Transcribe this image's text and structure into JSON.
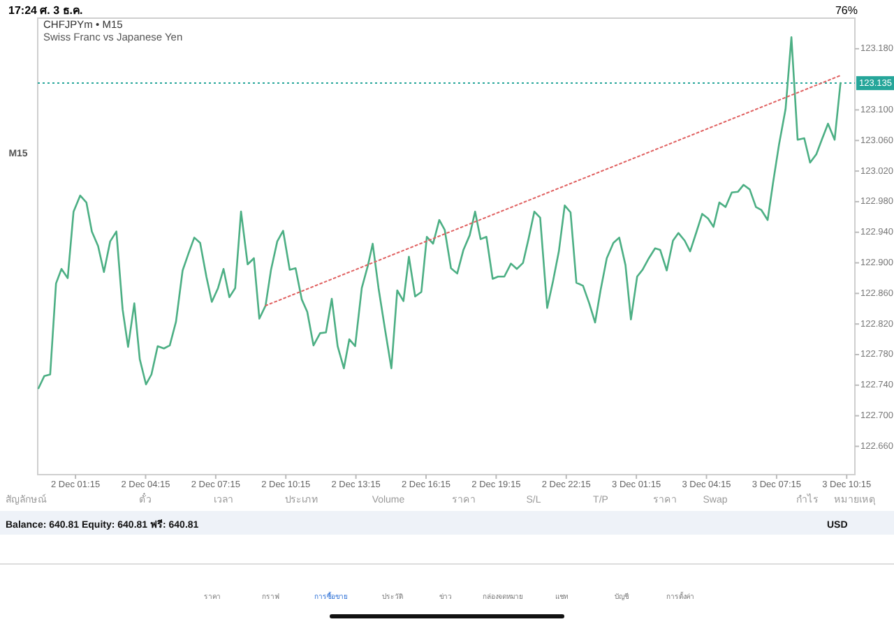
{
  "chart_data": {
    "type": "line",
    "title": "CHFJPYm • M15",
    "subtitle": "Swiss Franc vs Japanese Yen",
    "xlim": [
      "--12-01T23:38",
      "--12-03T10:36"
    ],
    "ylim": [
      122.623,
      123.22
    ],
    "xticks": [
      {
        "value": "--12-02T01:15",
        "label": "2 Dec 01:15"
      },
      {
        "value": "--12-02T04:15",
        "label": "2 Dec 04:15"
      },
      {
        "value": "--12-02T07:15",
        "label": "2 Dec 07:15"
      },
      {
        "value": "--12-02T10:15",
        "label": "2 Dec 10:15"
      },
      {
        "value": "--12-02T13:15",
        "label": "2 Dec 13:15"
      },
      {
        "value": "--12-02T16:15",
        "label": "2 Dec 16:15"
      },
      {
        "value": "--12-02T19:15",
        "label": "2 Dec 19:15"
      },
      {
        "value": "--12-02T22:15",
        "label": "2 Dec 22:15"
      },
      {
        "value": "--12-03T01:15",
        "label": "3 Dec 01:15"
      },
      {
        "value": "--12-03T04:15",
        "label": "3 Dec 04:15"
      },
      {
        "value": "--12-03T07:15",
        "label": "3 Dec 07:15"
      },
      {
        "value": "--12-03T10:15",
        "label": "3 Dec 10:15"
      }
    ],
    "yticks": [
      {
        "value": 122.66,
        "label": "122.660"
      },
      {
        "value": 122.7,
        "label": "122.700"
      },
      {
        "value": 122.74,
        "label": "122.740"
      },
      {
        "value": 122.78,
        "label": "122.780"
      },
      {
        "value": 122.82,
        "label": "122.820"
      },
      {
        "value": 122.86,
        "label": "122.860"
      },
      {
        "value": 122.9,
        "label": "122.900"
      },
      {
        "value": 122.94,
        "label": "122.940"
      },
      {
        "value": 122.98,
        "label": "122.980"
      },
      {
        "value": 123.02,
        "label": "123.020"
      },
      {
        "value": 123.06,
        "label": "123.060"
      },
      {
        "value": 123.1,
        "label": "123.100"
      },
      {
        "value": 123.18,
        "label": "123.180"
      }
    ],
    "series": [
      {
        "color": "#4caf84",
        "x": [
          "--12-01T23:40",
          "--12-01T23:55",
          "--12-02T00:10",
          "--12-02T00:25",
          "--12-02T00:39",
          "--12-02T00:55",
          "--12-02T01:10",
          "--12-02T01:27",
          "--12-02T01:43",
          "--12-02T01:57",
          "--12-02T02:13",
          "--12-02T02:28",
          "--12-02T02:44",
          "--12-02T03:00",
          "--12-02T03:16",
          "--12-02T03:30",
          "--12-02T03:46",
          "--12-02T04:00",
          "--12-02T04:16",
          "--12-02T04:30",
          "--12-02T04:46",
          "--12-02T05:02",
          "--12-02T05:17",
          "--12-02T05:33",
          "--12-02T05:50",
          "--12-02T06:05",
          "--12-02T06:20",
          "--12-02T06:35",
          "--12-02T06:51",
          "--12-02T07:05",
          "--12-02T07:21",
          "--12-02T07:35",
          "--12-02T07:50",
          "--12-02T08:05",
          "--12-02T08:20",
          "--12-02T08:37",
          "--12-02T08:53",
          "--12-02T09:07",
          "--12-02T09:23",
          "--12-02T09:37",
          "--12-02T09:53",
          "--12-02T10:08",
          "--12-02T10:25",
          "--12-02T10:40",
          "--12-02T10:56",
          "--12-02T11:10",
          "--12-02T11:26",
          "--12-02T11:43",
          "--12-02T11:58",
          "--12-02T12:13",
          "--12-02T12:28",
          "--12-02T12:44",
          "--12-02T12:58",
          "--12-02T13:13",
          "--12-02T13:30",
          "--12-02T13:46",
          "--12-02T13:58",
          "--12-02T14:13",
          "--12-02T14:30",
          "--12-02T14:46",
          "--12-02T15:01",
          "--12-02T15:17",
          "--12-02T15:31",
          "--12-02T15:47",
          "--12-02T16:03",
          "--12-02T16:17",
          "--12-02T16:33",
          "--12-02T16:49",
          "--12-02T17:03",
          "--12-02T17:19",
          "--12-02T17:35",
          "--12-02T17:51",
          "--12-02T18:07",
          "--12-02T18:21",
          "--12-02T18:35",
          "--12-02T18:50",
          "--12-02T19:06",
          "--12-02T19:20",
          "--12-02T19:36",
          "--12-02T19:53",
          "--12-02T20:08",
          "--12-02T20:24",
          "--12-02T20:38",
          "--12-02T20:53",
          "--12-02T21:08",
          "--12-02T21:26",
          "--12-02T21:41",
          "--12-02T21:56",
          "--12-02T22:11",
          "--12-02T22:26",
          "--12-02T22:41",
          "--12-02T22:58",
          "--12-02T23:14",
          "--12-02T23:29",
          "--12-02T23:43",
          "--12-02T23:59",
          "--12-03T00:16",
          "--12-03T00:31",
          "--12-03T00:47",
          "--12-03T01:01",
          "--12-03T01:17",
          "--12-03T01:31",
          "--12-03T01:47",
          "--12-03T02:03",
          "--12-03T02:16",
          "--12-03T02:33",
          "--12-03T02:49",
          "--12-03T03:03",
          "--12-03T03:19",
          "--12-03T03:33",
          "--12-03T03:49",
          "--12-03T04:04",
          "--12-03T04:19",
          "--12-03T04:33",
          "--12-03T04:48",
          "--12-03T05:04",
          "--12-03T05:20",
          "--12-03T05:36",
          "--12-03T05:50",
          "--12-03T06:06",
          "--12-03T06:22",
          "--12-03T06:36",
          "--12-03T06:52",
          "--12-03T07:06",
          "--12-03T07:21",
          "--12-03T07:38",
          "--12-03T07:53",
          "--12-03T08:09",
          "--12-03T08:26",
          "--12-03T08:41",
          "--12-03T08:57",
          "--12-03T09:11",
          "--12-03T09:27",
          "--12-03T09:44",
          "--12-03T09:59"
        ],
        "values": [
          122.736,
          122.752,
          122.754,
          122.873,
          122.892,
          122.88,
          122.967,
          122.988,
          122.979,
          122.941,
          122.922,
          122.888,
          122.928,
          122.941,
          122.839,
          122.79,
          122.847,
          122.774,
          122.741,
          122.754,
          122.791,
          122.788,
          122.792,
          122.823,
          122.89,
          122.912,
          122.933,
          122.926,
          122.882,
          122.849,
          122.867,
          122.892,
          122.855,
          122.867,
          122.967,
          122.898,
          122.906,
          122.827,
          122.844,
          122.891,
          122.928,
          122.942,
          122.891,
          122.893,
          122.852,
          122.836,
          122.792,
          122.808,
          122.809,
          122.853,
          122.791,
          122.762,
          122.8,
          122.791,
          122.867,
          122.897,
          122.925,
          122.867,
          122.812,
          122.762,
          122.864,
          122.85,
          122.908,
          122.856,
          122.862,
          122.934,
          122.925,
          122.956,
          122.943,
          122.893,
          122.886,
          122.917,
          122.936,
          122.967,
          122.931,
          122.934,
          122.879,
          122.882,
          122.882,
          122.899,
          122.892,
          122.9,
          122.931,
          122.967,
          122.959,
          122.841,
          122.876,
          122.915,
          122.975,
          122.966,
          122.874,
          122.87,
          122.847,
          122.822,
          122.864,
          122.906,
          122.926,
          122.933,
          122.897,
          122.826,
          122.882,
          122.891,
          122.906,
          122.919,
          122.917,
          122.89,
          122.929,
          122.939,
          122.929,
          122.915,
          122.94,
          122.964,
          122.958,
          122.947,
          122.979,
          122.973,
          122.992,
          122.993,
          123.002,
          122.996,
          122.973,
          122.969,
          122.956,
          123.005,
          123.054,
          123.101,
          123.195,
          123.061,
          123.063,
          123.031,
          123.042,
          123.061,
          123.082,
          123.061,
          123.135
        ]
      },
      {
        "type": "line",
        "color": "#e06060",
        "line_style": "dotted",
        "x": [
          "--12-02T09:23",
          "--12-03T09:59"
        ],
        "values": [
          122.844,
          123.145
        ]
      }
    ],
    "ref_lines": [
      {
        "axis": "y",
        "value": 123.135,
        "label": "123.135",
        "color": "#26a69a",
        "line_style": "dotted"
      }
    ],
    "annotations": [
      "17:24 ศ. 3 ธ.ค.",
      "76%",
      "M15",
      "สัญลักษณ์",
      "ตั๋ว",
      "เวลา",
      "ประเภท",
      "Volume",
      "ราคา",
      "S/L",
      "T/P",
      "ราคา",
      "Swap",
      "กำไร",
      "หมายเหตุ",
      "Balance: 640.81 Equity: 640.81 ฟรี: 640.81",
      "USD",
      "ราคา",
      "กราฟ",
      "การซื้อขาย",
      "ประวัติ",
      "ข่าว",
      "กล่องจดหมาย",
      "แชท",
      "บัญชี",
      "การตั้งค่า"
    ]
  }
}
